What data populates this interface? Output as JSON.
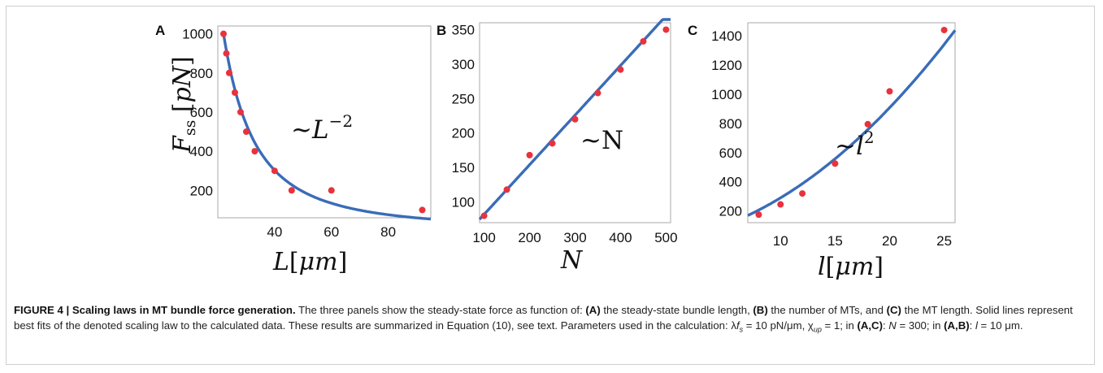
{
  "chart_data": [
    {
      "panel": "A",
      "type": "scatter",
      "xlabel": "L[μm]",
      "ylabel": "Fss [pN]",
      "annotation": "~L⁻²",
      "xlim": [
        20,
        95
      ],
      "ylim": [
        60,
        1040
      ],
      "xticks": [
        40,
        60,
        80
      ],
      "yticks": [
        200,
        400,
        600,
        800,
        1000
      ],
      "points_color": "#e8323c",
      "fit_color": "#3a6cb7",
      "fit": "y = 1000*(22/x)^2",
      "series": [
        {
          "x": [
            22,
            23,
            24,
            26,
            28,
            30,
            33,
            40,
            46,
            60,
            92
          ],
          "y": [
            1000,
            900,
            800,
            700,
            600,
            500,
            400,
            300,
            200,
            200,
            100
          ]
        }
      ]
    },
    {
      "panel": "B",
      "type": "scatter",
      "xlabel": "N",
      "annotation": "~N",
      "xlim": [
        90,
        510
      ],
      "ylim": [
        70,
        360
      ],
      "xticks": [
        100,
        200,
        300,
        400,
        500
      ],
      "yticks": [
        100,
        150,
        200,
        250,
        300,
        350
      ],
      "points_color": "#e8323c",
      "fit_color": "#3a6cb7",
      "fit": "y = 0.72*x + 10",
      "series": [
        {
          "x": [
            100,
            150,
            200,
            250,
            300,
            350,
            400,
            450,
            500
          ],
          "y": [
            80,
            118,
            168,
            185,
            220,
            258,
            292,
            333,
            350
          ]
        }
      ]
    },
    {
      "panel": "C",
      "type": "scatter",
      "xlabel": "l[μm]",
      "annotation": "~l²",
      "xlim": [
        7,
        26
      ],
      "ylim": [
        120,
        1490
      ],
      "xticks": [
        10,
        15,
        20,
        25
      ],
      "yticks": [
        200,
        400,
        600,
        800,
        1000,
        1200,
        1400
      ],
      "points_color": "#e8323c",
      "fit_color": "#3a6cb7",
      "fit": "y = 1.66*x^2 + 12*x + 4",
      "series": [
        {
          "x": [
            8,
            10,
            12,
            15,
            18,
            20,
            25
          ],
          "y": [
            175,
            245,
            320,
            525,
            795,
            1020,
            1440
          ]
        }
      ]
    }
  ],
  "caption": {
    "label": "FIGURE 4 | Scaling laws in MT bundle force generation.",
    "text": "The three panels show the steady-state force as function of: (A) the steady-state bundle length, (B) the number of MTs, and (C) the MT length. Solid lines represent best fits of the denoted scaling law to the calculated data. These results are summarized in Equation (10), see text. Parameters used in the calculation: λfs = 10 pN/μm, χup = 1; in (A,C): N = 300; in (A,B): l = 10 μm."
  }
}
